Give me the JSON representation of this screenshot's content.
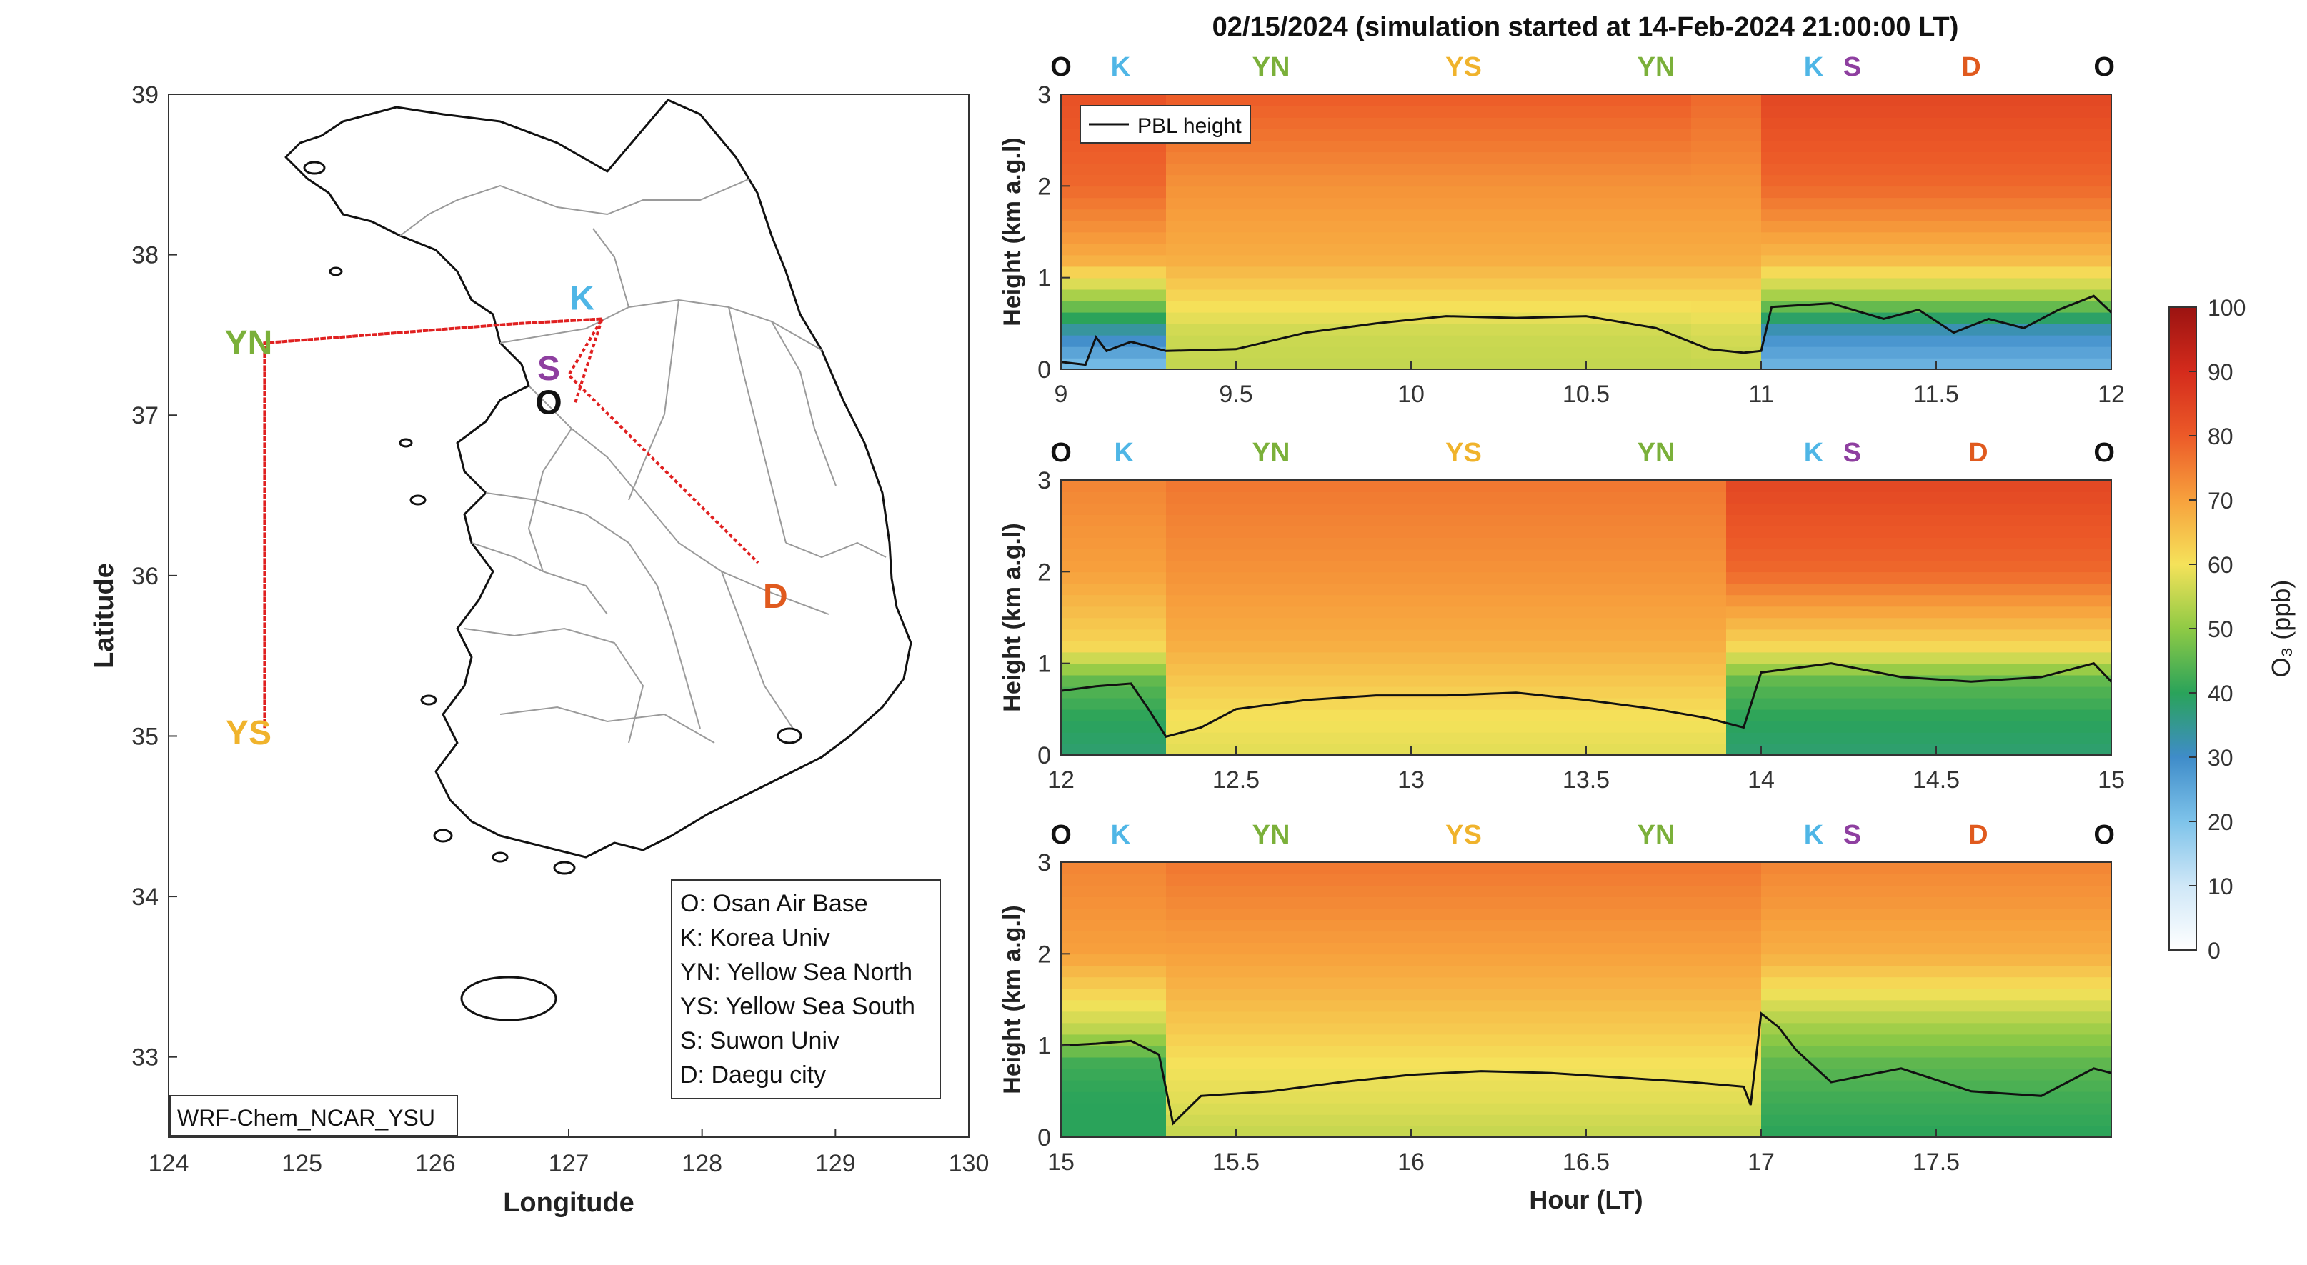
{
  "map": {
    "xlabel": "Longitude",
    "ylabel": "Latitude",
    "xlim": [
      124,
      130
    ],
    "ylim": [
      32.5,
      39
    ],
    "xticks": [
      124,
      125,
      126,
      127,
      128,
      129,
      130
    ],
    "yticks": [
      33,
      34,
      35,
      36,
      37,
      38,
      39
    ],
    "model_label": "WRF-Chem_NCAR_YSU",
    "sites": [
      {
        "code": "YN",
        "lon": 124.6,
        "lat": 37.45,
        "color": "#7bb03a"
      },
      {
        "code": "YS",
        "lon": 124.6,
        "lat": 35.02,
        "color": "#f0b32c"
      },
      {
        "code": "K",
        "lon": 127.1,
        "lat": 37.73,
        "color": "#4fb6e6"
      },
      {
        "code": "S",
        "lon": 126.85,
        "lat": 37.29,
        "color": "#8e3fa0"
      },
      {
        "code": "O",
        "lon": 126.85,
        "lat": 37.08,
        "color": "#111111"
      },
      {
        "code": "D",
        "lon": 128.55,
        "lat": 35.87,
        "color": "#e05a1e"
      }
    ],
    "flight_track": [
      {
        "lon": 127.05,
        "lat": 37.08
      },
      {
        "lon": 127.25,
        "lat": 37.6
      },
      {
        "lon": 126.6,
        "lat": 37.57
      },
      {
        "lon": 124.72,
        "lat": 37.45
      },
      {
        "lon": 124.72,
        "lat": 35.05
      },
      {
        "lon": 124.72,
        "lat": 37.45
      },
      {
        "lon": 126.6,
        "lat": 37.57
      },
      {
        "lon": 127.25,
        "lat": 37.6
      },
      {
        "lon": 127.0,
        "lat": 37.25
      },
      {
        "lon": 128.42,
        "lat": 36.08
      }
    ],
    "legend": [
      "O: Osan Air Base",
      "K: Korea Univ",
      "YN: Yellow Sea North",
      "YS: Yellow Sea South",
      "S: Suwon Univ",
      "D: Daegu city"
    ]
  },
  "title": "02/15/2024 (simulation started at 14-Feb-2024 21:00:00 LT)",
  "chart_data": [
    {
      "type": "heatmap",
      "panel": "top",
      "xlim": [
        9,
        12
      ],
      "xticks": [
        "9",
        "9.5",
        "10",
        "10.5",
        "11",
        "11.5",
        "12"
      ],
      "ylim": [
        0,
        3
      ],
      "yticks": [
        "0",
        "1",
        "2",
        "3"
      ],
      "ylabel": "Height (km a.g.l)",
      "site_labels": [
        {
          "code": "O",
          "t": 9.0
        },
        {
          "code": "K",
          "t": 9.17
        },
        {
          "code": "YN",
          "t": 9.6
        },
        {
          "code": "YS",
          "t": 10.15
        },
        {
          "code": "YN",
          "t": 10.7
        },
        {
          "code": "K",
          "t": 11.15
        },
        {
          "code": "S",
          "t": 11.26
        },
        {
          "code": "D",
          "t": 11.6
        },
        {
          "code": "O",
          "t": 11.98
        }
      ],
      "pbl_legend": "PBL height",
      "pbl_height": {
        "t": [
          9.0,
          9.07,
          9.1,
          9.13,
          9.2,
          9.3,
          9.5,
          9.7,
          9.9,
          10.1,
          10.3,
          10.5,
          10.7,
          10.85,
          10.95,
          11.0,
          11.03,
          11.2,
          11.35,
          11.45,
          11.55,
          11.65,
          11.75,
          11.85,
          11.95,
          12.0
        ],
        "km": [
          0.08,
          0.05,
          0.35,
          0.2,
          0.3,
          0.2,
          0.22,
          0.4,
          0.5,
          0.58,
          0.56,
          0.58,
          0.45,
          0.22,
          0.18,
          0.2,
          0.68,
          0.72,
          0.55,
          0.65,
          0.4,
          0.55,
          0.45,
          0.65,
          0.8,
          0.62
        ]
      },
      "o3_profile_ppb": {
        "height_km": [
          0,
          0.4,
          0.8,
          1.2,
          2.0,
          3.0
        ],
        "segments": [
          {
            "t_start": 9.0,
            "t_end": 9.3,
            "values": [
              20,
              32,
              52,
              68,
              78,
              82
            ]
          },
          {
            "t_start": 9.3,
            "t_end": 10.8,
            "values": [
              55,
              56,
              62,
              68,
              72,
              80
            ]
          },
          {
            "t_start": 10.8,
            "t_end": 11.0,
            "values": [
              55,
              57,
              62,
              68,
              72,
              78
            ]
          },
          {
            "t_start": 11.0,
            "t_end": 12.0,
            "values": [
              22,
              30,
              52,
              66,
              78,
              84
            ]
          }
        ]
      }
    },
    {
      "type": "heatmap",
      "panel": "middle",
      "xlim": [
        12,
        15
      ],
      "xticks": [
        "12",
        "12.5",
        "13",
        "13.5",
        "14",
        "14.5",
        "15"
      ],
      "ylim": [
        0,
        3
      ],
      "yticks": [
        "0",
        "1",
        "2",
        "3"
      ],
      "ylabel": "Height (km a.g.l)",
      "site_labels": [
        {
          "code": "O",
          "t": 12.0
        },
        {
          "code": "K",
          "t": 12.18
        },
        {
          "code": "YN",
          "t": 12.6
        },
        {
          "code": "YS",
          "t": 13.15
        },
        {
          "code": "YN",
          "t": 13.7
        },
        {
          "code": "K",
          "t": 14.15
        },
        {
          "code": "S",
          "t": 14.26
        },
        {
          "code": "D",
          "t": 14.62
        },
        {
          "code": "O",
          "t": 14.98
        }
      ],
      "pbl_height": {
        "t": [
          12.0,
          12.1,
          12.2,
          12.25,
          12.3,
          12.4,
          12.5,
          12.7,
          12.9,
          13.1,
          13.3,
          13.5,
          13.7,
          13.85,
          13.95,
          14.0,
          14.2,
          14.4,
          14.6,
          14.8,
          14.95,
          15.0
        ],
        "km": [
          0.7,
          0.75,
          0.78,
          0.5,
          0.2,
          0.3,
          0.5,
          0.6,
          0.65,
          0.65,
          0.68,
          0.6,
          0.5,
          0.4,
          0.3,
          0.9,
          1.0,
          0.85,
          0.8,
          0.85,
          1.0,
          0.8
        ]
      },
      "o3_profile_ppb": {
        "height_km": [
          0,
          0.4,
          0.8,
          1.2,
          2.0,
          3.0
        ],
        "segments": [
          {
            "t_start": 12.0,
            "t_end": 12.3,
            "values": [
              38,
              40,
              45,
              62,
              70,
              74
            ]
          },
          {
            "t_start": 12.3,
            "t_end": 13.9,
            "values": [
              58,
              60,
              64,
              68,
              72,
              76
            ]
          },
          {
            "t_start": 13.9,
            "t_end": 15.0,
            "values": [
              38,
              40,
              45,
              62,
              78,
              84
            ]
          }
        ]
      }
    },
    {
      "type": "heatmap",
      "panel": "bottom",
      "xlim": [
        15,
        18
      ],
      "xticks": [
        "15",
        "15.5",
        "16",
        "16.5",
        "17",
        "17.5"
      ],
      "ylim": [
        0,
        3
      ],
      "yticks": [
        "0",
        "1",
        "2",
        "3"
      ],
      "ylabel": "Height (km a.g.l)",
      "xlabel": "Hour (LT)",
      "site_labels": [
        {
          "code": "O",
          "t": 15.0
        },
        {
          "code": "K",
          "t": 15.17
        },
        {
          "code": "YN",
          "t": 15.6
        },
        {
          "code": "YS",
          "t": 16.15
        },
        {
          "code": "YN",
          "t": 16.7
        },
        {
          "code": "K",
          "t": 17.15
        },
        {
          "code": "S",
          "t": 17.26
        },
        {
          "code": "D",
          "t": 17.62
        },
        {
          "code": "O",
          "t": 17.98
        }
      ],
      "pbl_height": {
        "t": [
          15.0,
          15.1,
          15.2,
          15.28,
          15.32,
          15.4,
          15.6,
          15.8,
          16.0,
          16.2,
          16.4,
          16.6,
          16.8,
          16.95,
          16.97,
          17.0,
          17.05,
          17.1,
          17.2,
          17.4,
          17.6,
          17.8,
          17.95,
          18.0
        ],
        "km": [
          1.0,
          1.02,
          1.05,
          0.9,
          0.15,
          0.45,
          0.5,
          0.6,
          0.68,
          0.72,
          0.7,
          0.65,
          0.6,
          0.55,
          0.35,
          1.35,
          1.2,
          0.95,
          0.6,
          0.75,
          0.5,
          0.45,
          0.75,
          0.7
        ]
      },
      "o3_profile_ppb": {
        "height_km": [
          0,
          0.4,
          0.8,
          1.2,
          2.0,
          3.0
        ],
        "segments": [
          {
            "t_start": 15.0,
            "t_end": 15.3,
            "values": [
              40,
              40,
              42,
              55,
              70,
              74
            ]
          },
          {
            "t_start": 15.3,
            "t_end": 17.0,
            "values": [
              55,
              58,
              60,
              64,
              70,
              76
            ]
          },
          {
            "t_start": 17.0,
            "t_end": 18.0,
            "values": [
              40,
              42,
              45,
              52,
              68,
              74
            ]
          }
        ]
      }
    }
  ],
  "colorbar": {
    "label": "O₃ (ppb)",
    "range": [
      0,
      100
    ],
    "ticks": [
      "0",
      "10",
      "20",
      "30",
      "40",
      "50",
      "60",
      "70",
      "80",
      "90",
      "100"
    ],
    "stops": [
      {
        "v": 0,
        "color": "#ffffff"
      },
      {
        "v": 10,
        "color": "#cfe7f7"
      },
      {
        "v": 20,
        "color": "#7ec3ea"
      },
      {
        "v": 30,
        "color": "#3f8cc9"
      },
      {
        "v": 40,
        "color": "#2aa35a"
      },
      {
        "v": 50,
        "color": "#8fca45"
      },
      {
        "v": 60,
        "color": "#f5e25a"
      },
      {
        "v": 70,
        "color": "#f7a13d"
      },
      {
        "v": 80,
        "color": "#ec5a28"
      },
      {
        "v": 90,
        "color": "#d42b1c"
      },
      {
        "v": 100,
        "color": "#9b1311"
      }
    ]
  }
}
